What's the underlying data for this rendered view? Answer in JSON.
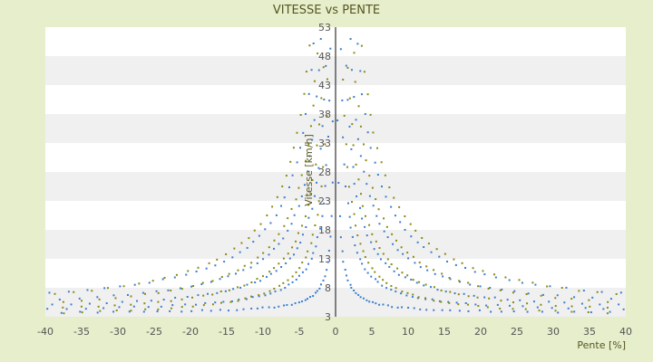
{
  "chart_data": {
    "type": "scatter",
    "title": "VITESSE vs PENTE",
    "xlabel": "Pente [%]",
    "ylabel": "Vitesse [km/h]",
    "xlim": [
      -40,
      40
    ],
    "ylim": [
      3,
      53
    ],
    "x_ticks": [
      -40,
      -35,
      -30,
      -25,
      -20,
      -15,
      -10,
      -5,
      0,
      5,
      10,
      15,
      20,
      25,
      30,
      35,
      40
    ],
    "y_ticks": [
      3,
      8,
      13,
      18,
      23,
      28,
      33,
      38,
      43,
      48,
      53
    ],
    "grid": "horizontal-bands",
    "legend": "none",
    "series": [
      {
        "color": "#3a7fd0",
        "family": "hyperbolic",
        "curves": [
          {
            "k": 10,
            "start": 0.3
          },
          {
            "k": 32,
            "start": 0.7
          },
          {
            "k": 60,
            "start": 1.2
          },
          {
            "k": 95,
            "start": 2.0
          },
          {
            "k": 140,
            "start": 3.0
          }
        ],
        "max_abs_x": 40,
        "offset": 3.5
      },
      {
        "color": "#8a8a10",
        "family": "hyperbolic",
        "curves": [
          {
            "k": 45,
            "start": 0.9
          },
          {
            "k": 75,
            "start": 1.5
          },
          {
            "k": 115,
            "start": 2.5
          },
          {
            "k": 170,
            "start": 3.6
          }
        ],
        "max_abs_x": 40,
        "offset": 2.5
      }
    ]
  }
}
